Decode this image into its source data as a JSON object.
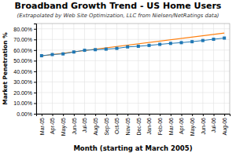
{
  "chart_data": {
    "type": "line",
    "title": "Broadband Growth Trend - US Home Users",
    "subtitle": "(Extrapolated by Web Site Optimization, LLC from Nielsen/NetRatings data)",
    "x_label": "Month (starting at March 2005)",
    "y_label": "Market Penetration %",
    "categories": [
      "Mar-05",
      "Apr-05",
      "May-05",
      "Jun-05",
      "Jul-05",
      "Aug-05",
      "Sep-05",
      "Oct-05",
      "Nov-05",
      "Dec-05",
      "Jan-06",
      "Feb-06",
      "Mar-06",
      "Apr-06",
      "May-06",
      "Jun-06",
      "Jul-06",
      "Aug-06"
    ],
    "values": [
      0.547,
      0.558,
      0.564,
      0.582,
      0.598,
      0.604,
      0.609,
      0.616,
      0.63,
      0.636,
      0.644,
      0.654,
      0.663,
      0.67,
      0.679,
      0.69,
      0.702,
      0.713
    ],
    "marker": "square",
    "trend_start": 0.545,
    "trend_end": 0.76,
    "ylim": [
      0.0,
      0.85
    ],
    "yticks": [
      {
        "value": 0.0,
        "label": "0.00%"
      },
      {
        "value": 0.1,
        "label": "10.00%"
      },
      {
        "value": 0.2,
        "label": "20.00%"
      },
      {
        "value": 0.3,
        "label": "30.00%"
      },
      {
        "value": 0.4,
        "label": "40.00%"
      },
      {
        "value": 0.5,
        "label": "50.00%"
      },
      {
        "value": 0.6,
        "label": "60.00%"
      },
      {
        "value": 0.7,
        "label": "70.00%"
      },
      {
        "value": 0.8,
        "label": "80.00%"
      }
    ],
    "grid": true
  }
}
